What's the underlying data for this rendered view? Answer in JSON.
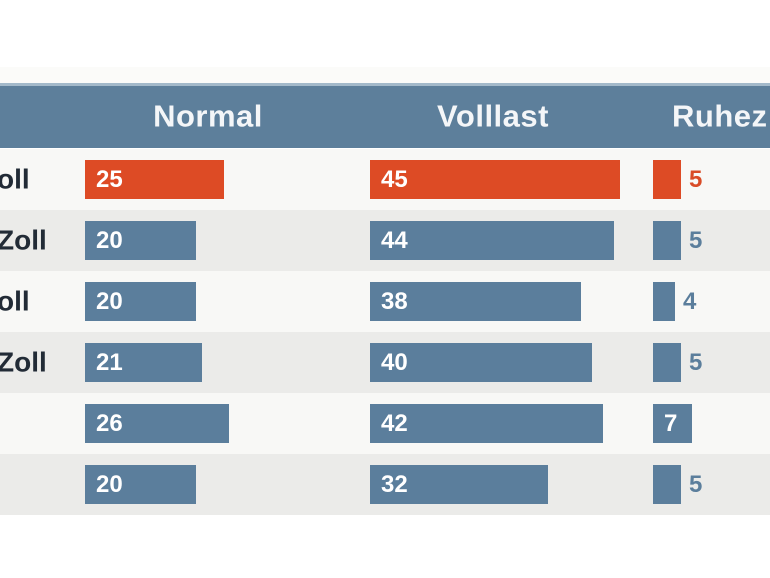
{
  "colors": {
    "header_bg": "#5d7f9b",
    "header_top_edge": "#a3b9ca",
    "bar_blue": "#5b7e9c",
    "bar_orange": "#dd4b25",
    "row_alt_bg": "#ebebe9",
    "row_plain_bg": "#f8f8f6",
    "label_text": "#222b36",
    "header_text": "#f4f6f8"
  },
  "table": {
    "columns": [
      {
        "label": "Normal"
      },
      {
        "label": "Volllast"
      },
      {
        "label": "Ruhez"
      }
    ],
    "rows": [
      {
        "label": "oll",
        "highlight": true,
        "values": [
          25,
          45,
          5
        ]
      },
      {
        "label": "Zoll",
        "highlight": false,
        "values": [
          20,
          44,
          5
        ]
      },
      {
        "label": "oll",
        "highlight": false,
        "values": [
          20,
          38,
          4
        ]
      },
      {
        "label": "Zoll",
        "highlight": false,
        "values": [
          21,
          40,
          5
        ]
      },
      {
        "label": "",
        "highlight": false,
        "values": [
          26,
          42,
          7
        ]
      },
      {
        "label": "",
        "highlight": false,
        "values": [
          20,
          32,
          5
        ]
      }
    ]
  },
  "chart_data": {
    "type": "bar",
    "orientation": "horizontal",
    "title": "",
    "categories": [
      "oll",
      "Zoll",
      "oll",
      "Zoll",
      "",
      ""
    ],
    "series": [
      {
        "name": "Normal",
        "values": [
          25,
          20,
          20,
          21,
          26,
          20
        ]
      },
      {
        "name": "Volllast",
        "values": [
          45,
          44,
          38,
          40,
          42,
          32
        ]
      },
      {
        "name": "Ruhez",
        "values": [
          5,
          5,
          4,
          5,
          7,
          5
        ]
      }
    ],
    "highlighted_row_index": 0,
    "value_labels_shown": true,
    "xlim": [
      0,
      50
    ],
    "grid": false,
    "legend_position": "top-header-row",
    "notes": "Row labels and third column header are clipped by the image edges; first row bars are orange (highlighted), others slate blue."
  }
}
